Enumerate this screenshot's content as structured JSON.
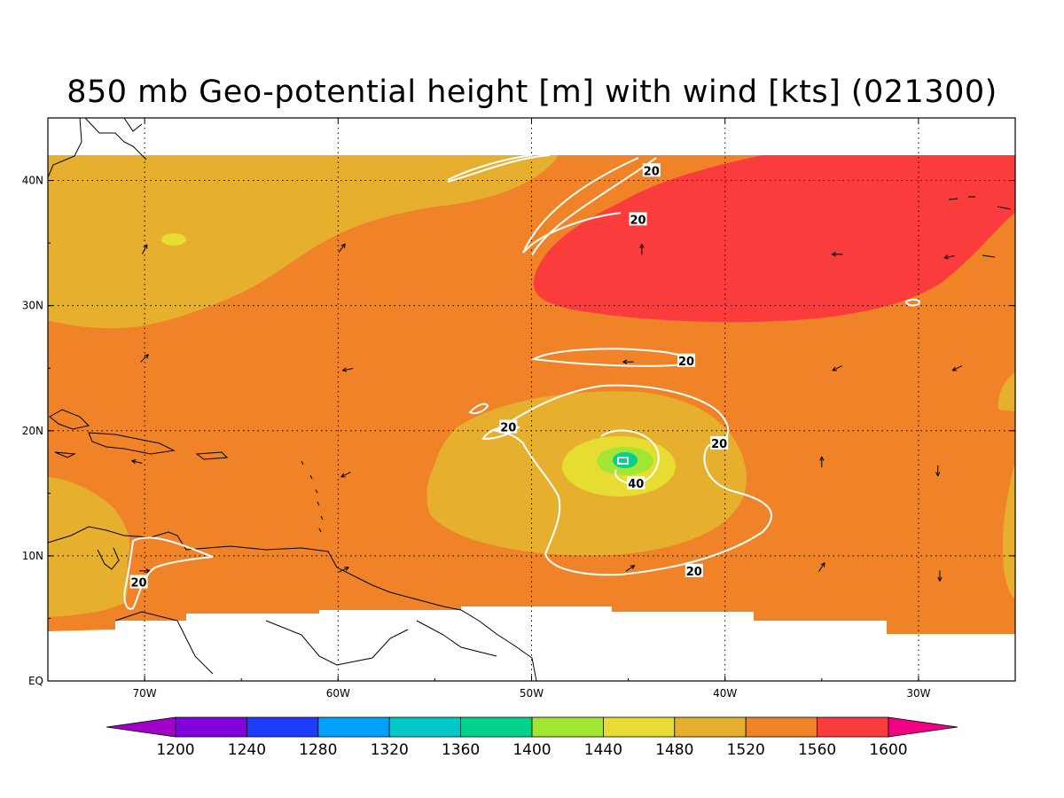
{
  "title": "850 mb Geo-potential height [m] with wind [kts] (021300)",
  "map": {
    "lon_range": [
      -75,
      -25
    ],
    "lat_range": [
      0,
      45
    ],
    "data_lat_limits": {
      "north": 42,
      "south_approx": 4
    },
    "lon_ticks": [
      {
        "lon": -70,
        "label": "70W"
      },
      {
        "lon": -60,
        "label": "60W"
      },
      {
        "lon": -50,
        "label": "50W"
      },
      {
        "lon": -40,
        "label": "40W"
      },
      {
        "lon": -30,
        "label": "30W"
      }
    ],
    "lat_ticks": [
      {
        "lat": 0,
        "label": "EQ"
      },
      {
        "lat": 10,
        "label": "10N"
      },
      {
        "lat": 20,
        "label": "20N"
      },
      {
        "lat": 30,
        "label": "30N"
      },
      {
        "lat": 40,
        "label": "40N"
      }
    ],
    "gridlines": "dotted",
    "storm_center": {
      "lon": -45.1,
      "lat": 17.6
    }
  },
  "colorbar": {
    "levels": [
      1200,
      1240,
      1280,
      1320,
      1360,
      1400,
      1440,
      1480,
      1520,
      1560,
      1600
    ],
    "colors": [
      "#a000c8",
      "#8200dc",
      "#1e3cff",
      "#00a0ff",
      "#00c8c8",
      "#00d28c",
      "#a0e632",
      "#e6dc32",
      "#e6af2d",
      "#f08228",
      "#fa3c3c",
      "#f00082"
    ],
    "low_extension_color": "#a000c8",
    "high_extension_color": "#f00082"
  },
  "fill_colors": {
    "band_1440_1480": "#e6dc32",
    "band_1480_1520": "#e6af2d",
    "band_1520_1560": "#f08228",
    "band_1560_1600": "#fa3c3c",
    "band_1400_1440": "#a0e632",
    "band_1360_1400": "#00d28c"
  },
  "contour_labels": [
    {
      "text": "20",
      "lon": -43.8,
      "lat": 40.8
    },
    {
      "text": "20",
      "lon": -44.5,
      "lat": 36.9
    },
    {
      "text": "20",
      "lon": -42.0,
      "lat": 25.6
    },
    {
      "text": "20",
      "lon": -51.2,
      "lat": 20.3
    },
    {
      "text": "20",
      "lon": -40.3,
      "lat": 19.0
    },
    {
      "text": "40",
      "lon": -44.6,
      "lat": 15.8
    },
    {
      "text": "20",
      "lon": -41.6,
      "lat": 8.8
    },
    {
      "text": "20",
      "lon": -70.3,
      "lat": 7.9
    }
  ],
  "wind_vectors": [
    {
      "lon": -70.0,
      "lat": 34.5,
      "u": 2,
      "v": 4
    },
    {
      "lon": -59.8,
      "lat": 34.6,
      "u": 3,
      "v": 4
    },
    {
      "lon": -44.3,
      "lat": 34.5,
      "u": 0,
      "v": 5
    },
    {
      "lon": -34.2,
      "lat": 34.1,
      "u": -5,
      "v": 0
    },
    {
      "lon": -28.4,
      "lat": 33.9,
      "u": -5,
      "v": -1
    },
    {
      "lon": -70.0,
      "lat": 25.8,
      "u": 3,
      "v": 3
    },
    {
      "lon": -59.5,
      "lat": 24.9,
      "u": -5,
      "v": -1
    },
    {
      "lon": -45.0,
      "lat": 25.5,
      "u": -4,
      "v": 0
    },
    {
      "lon": -34.2,
      "lat": 25.0,
      "u": -4,
      "v": -2
    },
    {
      "lon": -28.0,
      "lat": 25.0,
      "u": -4,
      "v": -2
    },
    {
      "lon": -70.4,
      "lat": 17.5,
      "u": -4,
      "v": 1
    },
    {
      "lon": -59.6,
      "lat": 16.5,
      "u": -4,
      "v": -2
    },
    {
      "lon": -35.0,
      "lat": 17.5,
      "u": 0,
      "v": 4
    },
    {
      "lon": -29.0,
      "lat": 16.8,
      "u": 0,
      "v": -4
    },
    {
      "lon": -70.0,
      "lat": 8.8,
      "u": 4,
      "v": 0
    },
    {
      "lon": -59.7,
      "lat": 8.9,
      "u": 4,
      "v": 2
    },
    {
      "lon": -44.9,
      "lat": 9.0,
      "u": 3,
      "v": 2
    },
    {
      "lon": -35.0,
      "lat": 9.1,
      "u": 2,
      "v": 3
    },
    {
      "lon": -28.9,
      "lat": 8.4,
      "u": 0,
      "v": -4
    }
  ]
}
